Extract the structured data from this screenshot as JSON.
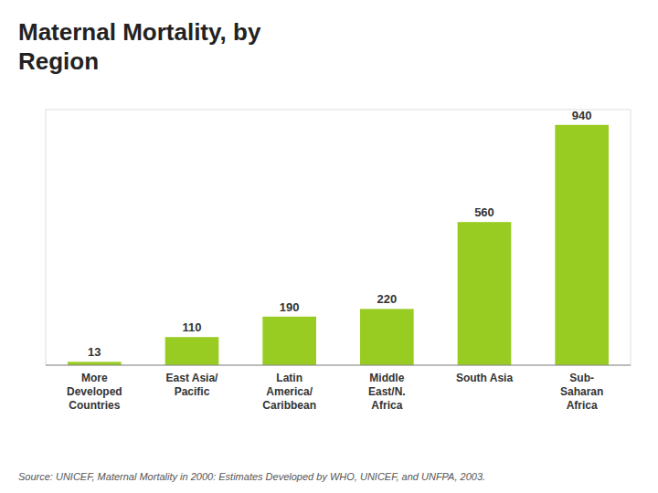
{
  "chart_data": {
    "type": "bar",
    "title": "Maternal Mortality, by\nRegion",
    "categories": [
      "More\nDeveloped\nCountries",
      "East Asia/\nPacific",
      "Latin\nAmerica/\nCaribbean",
      "Middle\nEast/N.\nAfrica",
      "South Asia",
      "Sub-\nSaharan\nAfrica"
    ],
    "values": [
      13,
      110,
      190,
      220,
      560,
      940
    ],
    "color": "#99cc22",
    "ylim": [
      0,
      1000
    ],
    "grid": false,
    "data_labels": true,
    "tick_labels": "x",
    "annotations": [
      "Source: UNICEF, Maternal Mortality in 2000: Estimates Developed by  WHO, UNICEF, and UNFPA, 2003."
    ]
  }
}
